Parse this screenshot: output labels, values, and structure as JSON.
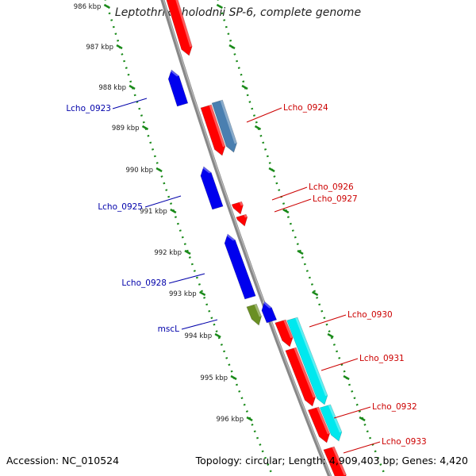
{
  "title": "Leptothrix cholodnii SP-6, complete genome",
  "accession": "Accession: NC_010524",
  "summary": "Topology: circular; Length: 4,909,403 bp; Genes: 4,420",
  "colors": {
    "forward": "#ff0000",
    "reverse": "#0000ee",
    "rna": "#4a7fb0",
    "cyan": "#00e8ee",
    "green": "#6a8f24",
    "tick": "#1a8a1a",
    "backbone": "#888888"
  },
  "ticks": [
    {
      "label": "986 kbp"
    },
    {
      "label": "987 kbp"
    },
    {
      "label": "988 kbp"
    },
    {
      "label": "989 kbp"
    },
    {
      "label": "990 kbp"
    },
    {
      "label": "991 kbp"
    },
    {
      "label": "992 kbp"
    },
    {
      "label": "993 kbp"
    },
    {
      "label": "994 kbp"
    },
    {
      "label": "995 kbp"
    },
    {
      "label": "996 kbp"
    }
  ],
  "genes": [
    {
      "label": "Lcho_0923",
      "strand": "reverse"
    },
    {
      "label": "Lcho_0924",
      "strand": "forward"
    },
    {
      "label": "Lcho_0925",
      "strand": "reverse"
    },
    {
      "label": "Lcho_0926",
      "strand": "forward"
    },
    {
      "label": "Lcho_0927",
      "strand": "forward"
    },
    {
      "label": "Lcho_0928",
      "strand": "reverse"
    },
    {
      "label": "mscL",
      "strand": "reverse"
    },
    {
      "label": "Lcho_0930",
      "strand": "forward"
    },
    {
      "label": "Lcho_0931",
      "strand": "forward"
    },
    {
      "label": "Lcho_0932",
      "strand": "forward"
    },
    {
      "label": "Lcho_0933",
      "strand": "forward"
    }
  ]
}
